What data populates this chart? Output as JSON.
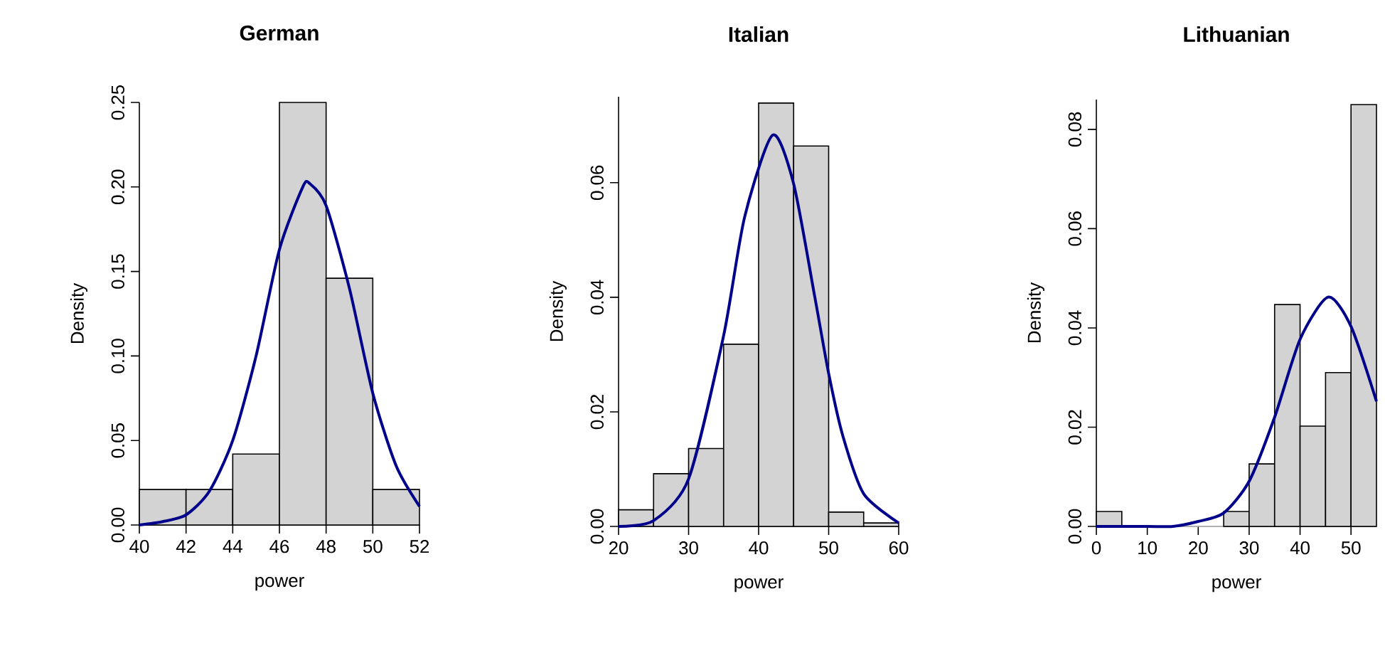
{
  "chart_data": [
    {
      "type": "histogram",
      "title": "German",
      "xlabel": "power",
      "ylabel": "Density",
      "color": "#d3d3d3",
      "bins": [
        40,
        42,
        44,
        46,
        48,
        50,
        52
      ],
      "values": [
        0.021,
        0.021,
        0.042,
        0.25,
        0.146,
        0.021
      ],
      "series": [
        {
          "type": "line",
          "color": "#00008b",
          "x": [
            40,
            41,
            42,
            43,
            44,
            45,
            46,
            47,
            47.3,
            48,
            49,
            50,
            51,
            52
          ],
          "values": [
            0,
            0.002,
            0.006,
            0.02,
            0.05,
            0.1,
            0.163,
            0.2,
            0.202,
            0.189,
            0.14,
            0.078,
            0.035,
            0.011
          ]
        }
      ],
      "xlim": [
        40,
        52
      ],
      "ylim": [
        0,
        0.25
      ],
      "xticks": [
        40,
        42,
        44,
        46,
        48,
        50,
        52
      ],
      "yticks": [
        {
          "value": 0,
          "label": "0.00"
        },
        0.05,
        {
          "value": 0.1,
          "label": "0.10"
        },
        0.15,
        {
          "value": 0.2,
          "label": "0.20"
        },
        0.25
      ]
    },
    {
      "type": "histogram",
      "title": "Italian",
      "xlabel": "power",
      "ylabel": "Density",
      "color": "#d3d3d3",
      "bins": [
        20,
        25,
        30,
        35,
        40,
        45,
        50,
        55,
        60
      ],
      "values": [
        0.0029,
        0.0092,
        0.0136,
        0.0318,
        0.0739,
        0.0664,
        0.0025,
        0.0006
      ],
      "series": [
        {
          "type": "line",
          "color": "#00008b",
          "x": [
            20,
            25,
            30,
            35,
            38,
            42,
            45,
            48,
            50,
            52,
            55,
            60
          ],
          "values": [
            0,
            0.001,
            0.0083,
            0.0333,
            0.054,
            0.0683,
            0.0598,
            0.0402,
            0.0267,
            0.0159,
            0.0057,
            0.0006
          ]
        }
      ],
      "xlim": [
        20,
        60
      ],
      "ylim": [
        0,
        0.075
      ],
      "xticks": [
        20,
        30,
        40,
        50,
        60
      ],
      "yticks": [
        {
          "value": 0,
          "label": "0.00"
        },
        0.02,
        0.04,
        0.06
      ]
    },
    {
      "type": "histogram",
      "title": "Lithuanian",
      "xlabel": "power",
      "ylabel": "Density",
      "color": "#d3d3d3",
      "bins": [
        0,
        5,
        10,
        15,
        20,
        25,
        30,
        35,
        40,
        45,
        50,
        55
      ],
      "values": [
        0.003,
        0,
        0,
        0,
        0,
        0.003,
        0.0126,
        0.0447,
        0.0202,
        0.031,
        0.085
      ],
      "series": [
        {
          "type": "line",
          "color": "#00008b",
          "x": [
            0,
            10,
            15,
            20,
            25,
            30,
            35,
            40,
            45.5,
            50,
            55
          ],
          "values": [
            0,
            0,
            0,
            0.001,
            0.0027,
            0.0091,
            0.022,
            0.0377,
            0.0462,
            0.0403,
            0.0252
          ]
        }
      ],
      "xlim": [
        0,
        55
      ],
      "ylim": [
        0,
        0.086
      ],
      "xticks": [
        0,
        10,
        20,
        30,
        40,
        50
      ],
      "yticks": [
        {
          "value": 0,
          "label": "0.00"
        },
        0.02,
        0.04,
        0.06,
        0.08
      ]
    }
  ]
}
